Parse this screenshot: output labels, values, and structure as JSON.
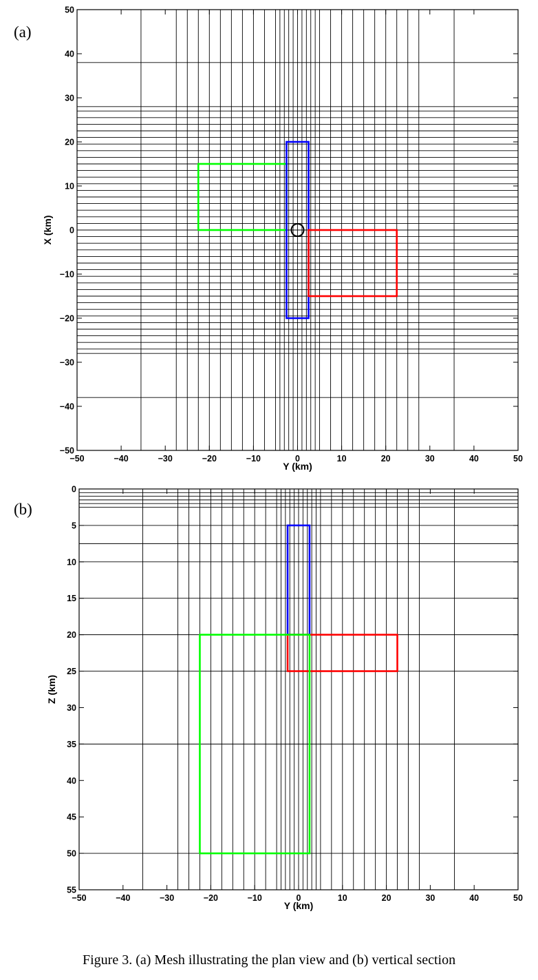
{
  "caption": "Figure 3. (a) Mesh illustrating the plan view and (b) vertical section",
  "chart_data": [
    {
      "type": "mesh",
      "panel_label": "(a)",
      "xlabel": "Y (km)",
      "ylabel": "X (km)",
      "xlim": [
        -50,
        50
      ],
      "ylim": [
        -50,
        50
      ],
      "y_inverted": false,
      "xticks": [
        -50,
        -40,
        -30,
        -20,
        -10,
        0,
        10,
        20,
        30,
        40,
        50
      ],
      "yticks": [
        -50,
        -40,
        -30,
        -20,
        -10,
        0,
        10,
        20,
        30,
        40,
        50
      ],
      "mesh_vertical_lines": [
        -35.5,
        -27.5,
        -25,
        -22.5,
        -20,
        -17.5,
        -15,
        -12.5,
        -10,
        -7.5,
        -5,
        -4,
        -3,
        -2,
        -1,
        0,
        1,
        2,
        3,
        4,
        5,
        7.5,
        10,
        12.5,
        15,
        17.5,
        20,
        22.5,
        25,
        27.5,
        35.5
      ],
      "mesh_horizontal_lines": [
        -38,
        -28,
        -27,
        -25.5,
        -24,
        -22.5,
        -21,
        -19.5,
        -18,
        -16.5,
        -15,
        -13.5,
        -12,
        -10.5,
        -9,
        -7.5,
        -6,
        -4.5,
        -3,
        -1.5,
        0,
        1.5,
        3,
        4.5,
        6,
        7.5,
        9,
        10.5,
        12,
        13.5,
        15,
        16.5,
        18,
        19.5,
        21,
        22.5,
        24,
        25.5,
        27,
        28,
        38
      ],
      "dashed_line": {
        "y": 0,
        "x": [
          -50,
          50
        ]
      },
      "rectangles": [
        {
          "color": "#00ff00",
          "x": [
            -22.5,
            -2.5
          ],
          "y": [
            0,
            15
          ]
        },
        {
          "color": "#0000ff",
          "x": [
            -2.5,
            2.5
          ],
          "y": [
            -20,
            20
          ]
        },
        {
          "color": "#ff0000",
          "x": [
            2.5,
            22.5
          ],
          "y": [
            -15,
            0
          ]
        }
      ],
      "markers": [
        {
          "shape": "circle",
          "x": 0,
          "y": 0
        }
      ]
    },
    {
      "type": "mesh",
      "panel_label": "(b)",
      "xlabel": "Y (km)",
      "ylabel": "Z (km)",
      "xlim": [
        -50,
        50
      ],
      "ylim": [
        0,
        55
      ],
      "y_inverted": true,
      "xticks": [
        -50,
        -40,
        -30,
        -20,
        -10,
        0,
        10,
        20,
        30,
        40,
        50
      ],
      "yticks": [
        0,
        5,
        10,
        15,
        20,
        25,
        30,
        35,
        40,
        45,
        50,
        55
      ],
      "mesh_vertical_lines": [
        -35.5,
        -27.5,
        -25,
        -22.5,
        -20,
        -17.5,
        -15,
        -12.5,
        -10,
        -7.5,
        -5,
        -4,
        -3,
        -2,
        -1,
        0,
        1,
        2,
        3,
        4,
        5,
        7.5,
        10,
        12.5,
        15,
        17.5,
        20,
        22.5,
        25,
        27.5,
        35.5
      ],
      "mesh_horizontal_lines": [
        0.5,
        1,
        1.5,
        2,
        2.5,
        5,
        7.5,
        10,
        15,
        20,
        25,
        35,
        50
      ],
      "rectangles": [
        {
          "color": "#0000ff",
          "x": [
            -2.5,
            2.5
          ],
          "y": [
            5,
            20
          ]
        },
        {
          "color": "#ff0000",
          "x": [
            -2.5,
            22.5
          ],
          "y": [
            20,
            25
          ]
        },
        {
          "color": "#00ff00",
          "x": [
            -22.5,
            2.5
          ],
          "y": [
            20,
            50
          ]
        }
      ]
    }
  ]
}
